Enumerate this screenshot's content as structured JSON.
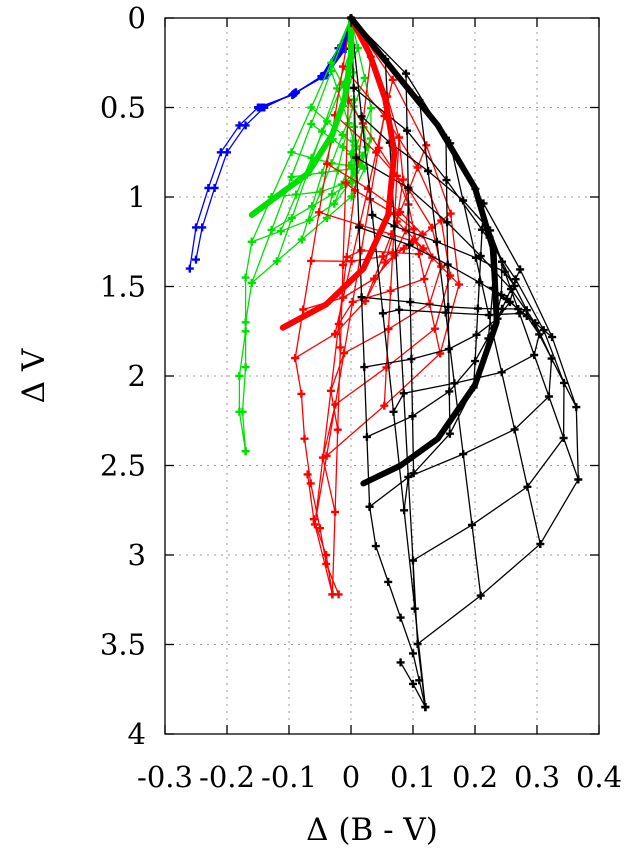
{
  "chart_data": {
    "type": "line",
    "title": "",
    "xlabel": "Δ (B - V)",
    "ylabel": "Δ V",
    "xlim": [
      -0.3,
      0.4
    ],
    "ylim": [
      4,
      0
    ],
    "y_inverted": true,
    "grid": true,
    "xticks": [
      "-0.3",
      "-0.2",
      "-0.1",
      "0",
      "0.1",
      "0.2",
      "0.3",
      "0.4"
    ],
    "yticks": [
      "0",
      "0.5",
      "1",
      "1.5",
      "2",
      "2.5",
      "3",
      "3.5",
      "4"
    ],
    "colors": {
      "blue": "#0000ff",
      "green": "#00e000",
      "red": "#ff0000",
      "black": "#000000"
    },
    "thick_curves": [
      {
        "color": "#00e000",
        "points": [
          [
            0.0,
            0.0
          ],
          [
            0.0,
            0.2
          ],
          [
            -0.01,
            0.45
          ],
          [
            -0.03,
            0.65
          ],
          [
            -0.07,
            0.87
          ],
          [
            -0.16,
            1.1
          ]
        ]
      },
      {
        "color": "#ff0000",
        "points": [
          [
            0.0,
            0.0
          ],
          [
            0.03,
            0.2
          ],
          [
            0.055,
            0.45
          ],
          [
            0.07,
            0.75
          ],
          [
            0.06,
            1.1
          ],
          [
            0.02,
            1.4
          ],
          [
            -0.04,
            1.6
          ],
          [
            -0.11,
            1.73
          ]
        ]
      },
      {
        "color": "#000000",
        "points": [
          [
            0.0,
            0.0
          ],
          [
            0.07,
            0.3
          ],
          [
            0.14,
            0.6
          ],
          [
            0.2,
            0.95
          ],
          [
            0.23,
            1.3
          ],
          [
            0.235,
            1.7
          ],
          [
            0.2,
            2.05
          ],
          [
            0.14,
            2.35
          ],
          [
            0.08,
            2.5
          ],
          [
            0.02,
            2.6
          ]
        ]
      }
    ],
    "grids": [
      {
        "name": "blue",
        "color": "#0000ff",
        "top_edge": [
          [
            0.0,
            0.0
          ],
          [
            -0.01,
            0.1
          ],
          [
            -0.04,
            0.3
          ],
          [
            -0.07,
            0.4
          ],
          [
            -0.15,
            0.5
          ]
        ],
        "left_edge": [
          [
            -0.15,
            0.5
          ],
          [
            -0.18,
            0.6
          ],
          [
            -0.21,
            0.75
          ],
          [
            -0.23,
            0.95
          ],
          [
            -0.25,
            1.17
          ],
          [
            -0.26,
            1.4
          ]
        ],
        "right_edge": [
          [
            0.0,
            0.0
          ],
          [
            -0.005,
            0.15
          ],
          [
            -0.03,
            0.3
          ],
          [
            -0.08,
            0.4
          ],
          [
            -0.14,
            0.5
          ]
        ],
        "bottom_edge": [
          [
            -0.14,
            0.5
          ],
          [
            -0.17,
            0.6
          ],
          [
            -0.2,
            0.75
          ],
          [
            -0.22,
            0.95
          ],
          [
            -0.24,
            1.17
          ],
          [
            -0.25,
            1.35
          ]
        ],
        "nu": 4,
        "nv": 8
      },
      {
        "name": "green",
        "color": "#00e000",
        "top_edge": [
          [
            -0.16,
            1.25
          ],
          [
            -0.12,
            1.2
          ],
          [
            -0.06,
            1.12
          ],
          [
            -0.02,
            1.02
          ],
          [
            0.0,
            0.92
          ],
          [
            0.0,
            0.78
          ],
          [
            0.005,
            0.6
          ],
          [
            0.005,
            0.4
          ],
          [
            0.0,
            0.0
          ]
        ],
        "left_edge": [
          [
            -0.16,
            1.25
          ],
          [
            -0.17,
            1.45
          ],
          [
            -0.17,
            1.75
          ],
          [
            -0.18,
            2.0
          ],
          [
            -0.18,
            2.2
          ],
          [
            -0.17,
            2.42
          ]
        ],
        "right_edge": [
          [
            0.0,
            0.0
          ],
          [
            0.02,
            0.3
          ],
          [
            0.035,
            0.55
          ],
          [
            0.03,
            0.75
          ],
          [
            0.01,
            0.97
          ],
          [
            -0.04,
            1.12
          ],
          [
            -0.12,
            1.36
          ],
          [
            -0.16,
            1.48
          ]
        ],
        "bottom_edge": [
          [
            -0.16,
            1.48
          ],
          [
            -0.17,
            1.7
          ],
          [
            -0.17,
            1.95
          ],
          [
            -0.175,
            2.2
          ],
          [
            -0.17,
            2.42
          ]
        ],
        "nu": 10,
        "nv": 5
      },
      {
        "name": "red",
        "color": "#ff0000",
        "top_edge": [
          [
            -0.09,
            1.9
          ],
          [
            -0.06,
            1.85
          ],
          [
            -0.02,
            1.75
          ],
          [
            0.02,
            1.6
          ],
          [
            0.05,
            1.42
          ],
          [
            0.07,
            1.2
          ],
          [
            0.085,
            0.95
          ],
          [
            0.08,
            0.7
          ],
          [
            0.06,
            0.45
          ],
          [
            0.03,
            0.2
          ],
          [
            0.0,
            0.0
          ]
        ],
        "left_edge": [
          [
            -0.09,
            1.9
          ],
          [
            -0.08,
            2.1
          ],
          [
            -0.075,
            2.35
          ],
          [
            -0.065,
            2.6
          ],
          [
            -0.05,
            2.85
          ],
          [
            -0.04,
            3.05
          ],
          [
            -0.02,
            3.22
          ]
        ],
        "right_edge": [
          [
            0.0,
            0.0
          ],
          [
            0.06,
            0.3
          ],
          [
            0.1,
            0.55
          ],
          [
            0.14,
            0.85
          ],
          [
            0.17,
            1.2
          ],
          [
            0.175,
            1.55
          ],
          [
            0.15,
            1.85
          ],
          [
            0.1,
            2.05
          ],
          [
            0.04,
            2.2
          ],
          [
            -0.02,
            2.35
          ],
          [
            -0.06,
            2.55
          ],
          [
            -0.06,
            2.8
          ],
          [
            -0.045,
            3.05
          ],
          [
            -0.03,
            3.22
          ]
        ],
        "bottom_edge": [
          [
            -0.07,
            2.55
          ],
          [
            -0.06,
            2.8
          ],
          [
            -0.04,
            3.0
          ],
          [
            -0.03,
            3.22
          ]
        ],
        "nu": 9,
        "nv": 7
      },
      {
        "name": "black",
        "color": "#000000",
        "top_edge": [
          [
            0.03,
            2.73
          ],
          [
            0.06,
            2.65
          ],
          [
            0.11,
            2.52
          ],
          [
            0.16,
            2.32
          ],
          [
            0.2,
            2.05
          ],
          [
            0.225,
            1.75
          ],
          [
            0.23,
            1.45
          ],
          [
            0.22,
            1.1
          ],
          [
            0.18,
            0.8
          ],
          [
            0.12,
            0.5
          ],
          [
            0.06,
            0.25
          ],
          [
            0.0,
            0.0
          ]
        ],
        "left_edge": [
          [
            0.03,
            2.73
          ],
          [
            0.04,
            2.95
          ],
          [
            0.06,
            3.15
          ],
          [
            0.08,
            3.35
          ],
          [
            0.1,
            3.55
          ],
          [
            0.11,
            3.7
          ],
          [
            0.12,
            3.85
          ]
        ],
        "right_edge": [
          [
            0.0,
            0.0
          ],
          [
            0.1,
            0.35
          ],
          [
            0.2,
            0.95
          ],
          [
            0.28,
            1.45
          ],
          [
            0.34,
            1.9
          ],
          [
            0.37,
            2.25
          ],
          [
            0.37,
            2.55
          ],
          [
            0.34,
            2.8
          ],
          [
            0.29,
            3.0
          ],
          [
            0.24,
            3.15
          ],
          [
            0.18,
            3.3
          ],
          [
            0.12,
            3.45
          ],
          [
            0.08,
            3.6
          ],
          [
            0.1,
            3.72
          ],
          [
            0.12,
            3.85
          ]
        ],
        "bottom_edge": [
          [
            0.08,
            3.6
          ],
          [
            0.1,
            3.72
          ],
          [
            0.12,
            3.85
          ]
        ],
        "nu": 11,
        "nv": 7
      }
    ]
  }
}
